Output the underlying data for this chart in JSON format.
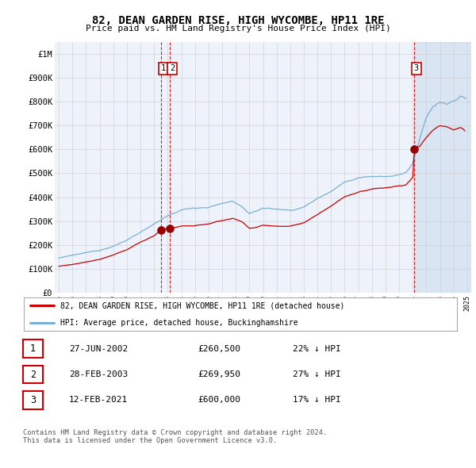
{
  "title": "82, DEAN GARDEN RISE, HIGH WYCOMBE, HP11 1RE",
  "subtitle": "Price paid vs. HM Land Registry's House Price Index (HPI)",
  "transactions": [
    {
      "num": 1,
      "date_x": 2002.5,
      "price": 260500,
      "label": "27-JUN-2002",
      "pct": "22% ↓ HPI"
    },
    {
      "num": 2,
      "date_x": 2003.17,
      "price": 269950,
      "label": "28-FEB-2003",
      "pct": "27% ↓ HPI"
    },
    {
      "num": 3,
      "date_x": 2021.12,
      "price": 600000,
      "label": "12-FEB-2021",
      "pct": "17% ↓ HPI"
    }
  ],
  "legend_line1": "82, DEAN GARDEN RISE, HIGH WYCOMBE, HP11 1RE (detached house)",
  "legend_line2": "HPI: Average price, detached house, Buckinghamshire",
  "footnote1": "Contains HM Land Registry data © Crown copyright and database right 2024.",
  "footnote2": "This data is licensed under the Open Government Licence v3.0.",
  "hpi_color": "#7bafd4",
  "price_color": "#cc0000",
  "marker_color": "#990000",
  "vline_color": "#cc0000",
  "box_color": "#cc0000",
  "ylim": [
    0,
    1050000
  ],
  "yticks": [
    0,
    100000,
    200000,
    300000,
    400000,
    500000,
    600000,
    700000,
    800000,
    900000,
    1000000
  ],
  "ytick_labels": [
    "£0",
    "£100K",
    "£200K",
    "£300K",
    "£400K",
    "£500K",
    "£600K",
    "£700K",
    "£800K",
    "£900K",
    "£1M"
  ],
  "x_start_year": 1995,
  "x_end_year": 2025,
  "xtick_years": [
    1995,
    1996,
    1997,
    1998,
    1999,
    2000,
    2001,
    2002,
    2003,
    2004,
    2005,
    2006,
    2007,
    2008,
    2009,
    2010,
    2011,
    2012,
    2013,
    2014,
    2015,
    2016,
    2017,
    2018,
    2019,
    2020,
    2021,
    2022,
    2023,
    2024,
    2025
  ],
  "background_plot": "#eef2fb",
  "background_fig": "#ffffff",
  "grid_color": "#cccccc",
  "hpi_waypoints": [
    [
      1995.0,
      145000
    ],
    [
      1996.0,
      155000
    ],
    [
      1997.0,
      165000
    ],
    [
      1998.0,
      175000
    ],
    [
      1999.0,
      195000
    ],
    [
      2000.0,
      220000
    ],
    [
      2001.0,
      255000
    ],
    [
      2002.0,
      290000
    ],
    [
      2003.0,
      320000
    ],
    [
      2004.0,
      345000
    ],
    [
      2005.0,
      355000
    ],
    [
      2006.0,
      360000
    ],
    [
      2007.0,
      375000
    ],
    [
      2007.8,
      385000
    ],
    [
      2008.5,
      360000
    ],
    [
      2009.0,
      330000
    ],
    [
      2009.5,
      340000
    ],
    [
      2010.0,
      355000
    ],
    [
      2011.0,
      350000
    ],
    [
      2012.0,
      345000
    ],
    [
      2013.0,
      360000
    ],
    [
      2014.0,
      395000
    ],
    [
      2015.0,
      430000
    ],
    [
      2016.0,
      470000
    ],
    [
      2017.0,
      490000
    ],
    [
      2018.0,
      500000
    ],
    [
      2019.0,
      505000
    ],
    [
      2020.0,
      510000
    ],
    [
      2020.5,
      520000
    ],
    [
      2021.0,
      560000
    ],
    [
      2021.5,
      660000
    ],
    [
      2022.0,
      750000
    ],
    [
      2022.5,
      800000
    ],
    [
      2023.0,
      820000
    ],
    [
      2023.5,
      810000
    ],
    [
      2024.0,
      820000
    ],
    [
      2024.5,
      840000
    ],
    [
      2025.0,
      830000
    ]
  ],
  "price_waypoints": [
    [
      1995.0,
      110000
    ],
    [
      1996.0,
      118000
    ],
    [
      1997.0,
      128000
    ],
    [
      1998.0,
      138000
    ],
    [
      1999.0,
      155000
    ],
    [
      2000.0,
      178000
    ],
    [
      2001.0,
      210000
    ],
    [
      2002.0,
      235000
    ],
    [
      2002.5,
      260500
    ],
    [
      2003.17,
      269950
    ],
    [
      2003.5,
      272000
    ],
    [
      2004.0,
      278000
    ],
    [
      2005.0,
      280000
    ],
    [
      2006.0,
      288000
    ],
    [
      2007.0,
      300000
    ],
    [
      2007.8,
      310000
    ],
    [
      2008.5,
      295000
    ],
    [
      2009.0,
      268000
    ],
    [
      2009.5,
      272000
    ],
    [
      2010.0,
      282000
    ],
    [
      2011.0,
      278000
    ],
    [
      2012.0,
      275000
    ],
    [
      2013.0,
      290000
    ],
    [
      2014.0,
      325000
    ],
    [
      2015.0,
      360000
    ],
    [
      2016.0,
      400000
    ],
    [
      2017.0,
      420000
    ],
    [
      2018.0,
      430000
    ],
    [
      2019.0,
      438000
    ],
    [
      2020.0,
      445000
    ],
    [
      2020.5,
      450000
    ],
    [
      2021.0,
      480000
    ],
    [
      2021.12,
      600000
    ],
    [
      2021.5,
      610000
    ],
    [
      2022.0,
      650000
    ],
    [
      2022.5,
      680000
    ],
    [
      2023.0,
      700000
    ],
    [
      2023.5,
      695000
    ],
    [
      2024.0,
      680000
    ],
    [
      2024.5,
      690000
    ],
    [
      2024.9,
      675000
    ]
  ]
}
